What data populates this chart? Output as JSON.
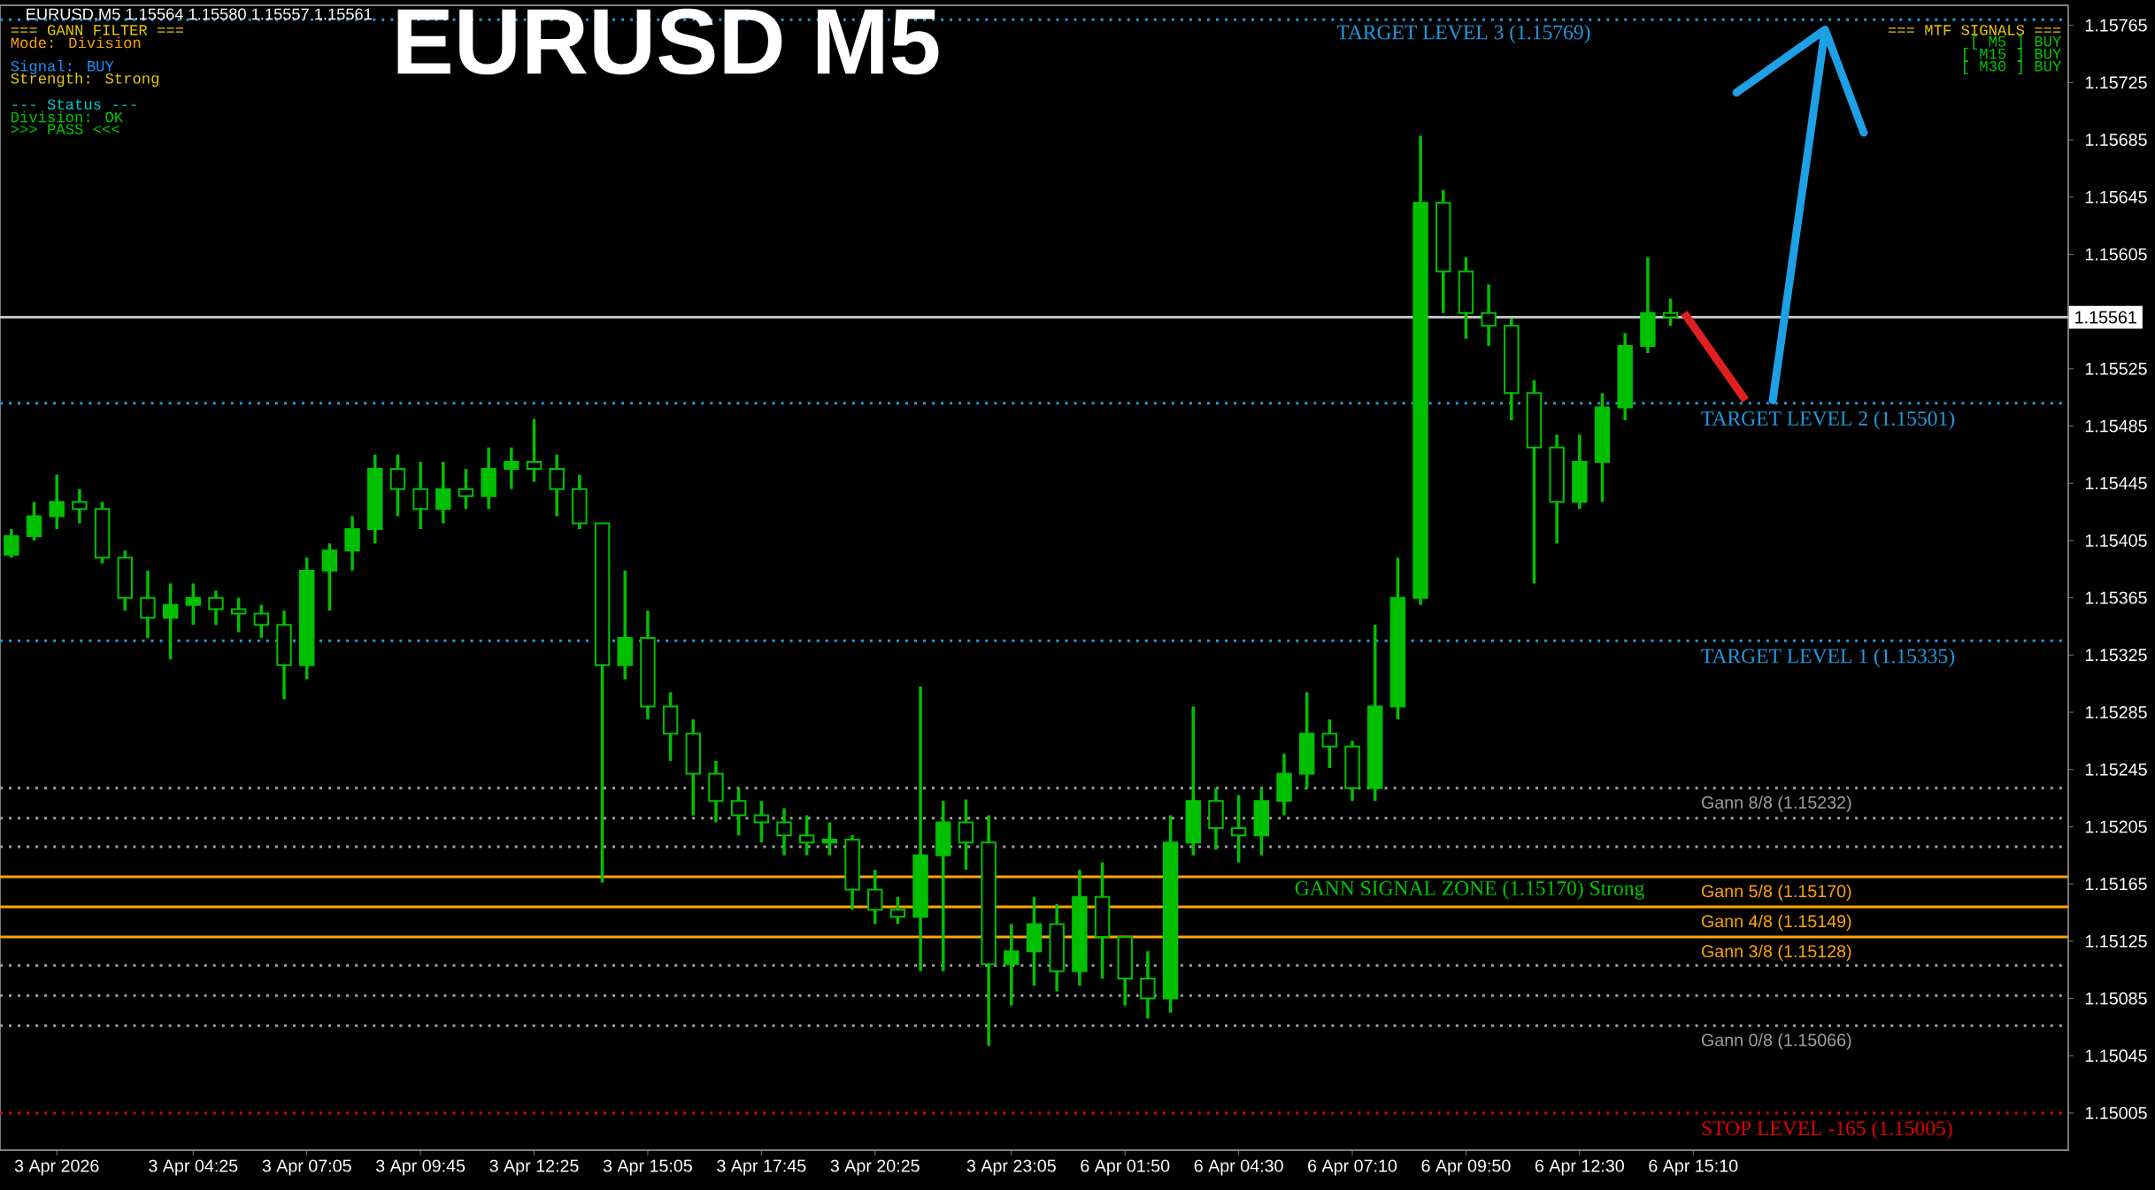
{
  "chart_data": {
    "type": "candlestick",
    "title": "EURUSD M5",
    "color": "#00c000",
    "categories": [
      null,
      null,
      "3 Apr 2026",
      null,
      null,
      null,
      null,
      null,
      "3 Apr 04:25",
      null,
      null,
      null,
      null,
      "3 Apr 07:05",
      null,
      null,
      null,
      null,
      "3 Apr 09:45",
      null,
      null,
      null,
      null,
      "3 Apr 12:25",
      null,
      null,
      null,
      null,
      "3 Apr 15:05",
      null,
      null,
      null,
      null,
      "3 Apr 17:45",
      null,
      null,
      null,
      null,
      "3 Apr 20:25",
      null,
      null,
      null,
      null,
      null,
      "3 Apr 23:05",
      null,
      null,
      null,
      null,
      "6 Apr 01:50",
      null,
      null,
      null,
      null,
      "6 Apr 04:30",
      null,
      null,
      null,
      null,
      "6 Apr 07:10",
      null,
      null,
      null,
      null,
      "6 Apr 09:50",
      null,
      null,
      null,
      null,
      "6 Apr 12:30",
      null,
      null,
      null,
      null,
      "6 Apr 15:10",
      null,
      null,
      null,
      null,
      null,
      null,
      null,
      null,
      null,
      null,
      null,
      null,
      null,
      null,
      null,
      null
    ],
    "ohlc": [
      [
        1.15395,
        1.15413,
        1.15393,
        1.15408
      ],
      [
        1.15408,
        1.15432,
        1.15405,
        1.15422
      ],
      [
        1.15422,
        1.15451,
        1.15413,
        1.15432
      ],
      [
        1.15432,
        1.15441,
        1.15417,
        1.15427
      ],
      [
        1.15427,
        1.15432,
        1.15389,
        1.15393
      ],
      [
        1.15393,
        1.15398,
        1.15356,
        1.15365
      ],
      [
        1.15365,
        1.15384,
        1.15337,
        1.15351
      ],
      [
        1.15351,
        1.15375,
        1.15322,
        1.1536
      ],
      [
        1.1536,
        1.15375,
        1.15346,
        1.15365
      ],
      [
        1.15365,
        1.1537,
        1.15346,
        1.15357
      ],
      [
        1.15357,
        1.15365,
        1.15341,
        1.15354
      ],
      [
        1.15354,
        1.1536,
        1.15337,
        1.15346
      ],
      [
        1.15346,
        1.15356,
        1.15294,
        1.15318
      ],
      [
        1.15318,
        1.15393,
        1.15308,
        1.15384
      ],
      [
        1.15384,
        1.15403,
        1.15356,
        1.15398
      ],
      [
        1.15398,
        1.15422,
        1.15384,
        1.15413
      ],
      [
        1.15413,
        1.15465,
        1.15403,
        1.15455
      ],
      [
        1.15455,
        1.15465,
        1.15422,
        1.15441
      ],
      [
        1.15441,
        1.1546,
        1.15413,
        1.15427
      ],
      [
        1.15427,
        1.1546,
        1.15417,
        1.15441
      ],
      [
        1.15441,
        1.15455,
        1.15427,
        1.15436
      ],
      [
        1.15436,
        1.1547,
        1.15427,
        1.15455
      ],
      [
        1.15455,
        1.1547,
        1.15441,
        1.1546
      ],
      [
        1.1546,
        1.1549,
        1.15446,
        1.15455
      ],
      [
        1.15455,
        1.15465,
        1.15422,
        1.15441
      ],
      [
        1.15441,
        1.15451,
        1.15413,
        1.15417
      ],
      [
        1.15417,
        1.15417,
        1.15166,
        1.15318
      ],
      [
        1.15318,
        1.15384,
        1.15308,
        1.15337
      ],
      [
        1.15337,
        1.15356,
        1.1528,
        1.15289
      ],
      [
        1.15289,
        1.15299,
        1.15251,
        1.1527
      ],
      [
        1.1527,
        1.1528,
        1.15213,
        1.15242
      ],
      [
        1.15242,
        1.15251,
        1.15208,
        1.15223
      ],
      [
        1.15223,
        1.15232,
        1.15199,
        1.15213
      ],
      [
        1.15213,
        1.15223,
        1.15194,
        1.15208
      ],
      [
        1.15208,
        1.15218,
        1.15185,
        1.15199
      ],
      [
        1.15199,
        1.15213,
        1.15185,
        1.15194
      ],
      [
        1.15194,
        1.15208,
        1.15185,
        1.15196
      ],
      [
        1.15196,
        1.15199,
        1.15147,
        1.15161
      ],
      [
        1.15161,
        1.15175,
        1.15137,
        1.15147
      ],
      [
        1.15147,
        1.15156,
        1.15137,
        1.15142
      ],
      [
        1.15142,
        1.15303,
        1.15104,
        1.15185
      ],
      [
        1.15185,
        1.15223,
        1.15104,
        1.15208
      ],
      [
        1.15208,
        1.15224,
        1.15175,
        1.15194
      ],
      [
        1.15194,
        1.15213,
        1.15052,
        1.15109
      ],
      [
        1.15109,
        1.15137,
        1.1508,
        1.15118
      ],
      [
        1.15118,
        1.15156,
        1.15094,
        1.15137
      ],
      [
        1.15137,
        1.15151,
        1.1509,
        1.15104
      ],
      [
        1.15104,
        1.15175,
        1.15094,
        1.15156
      ],
      [
        1.15156,
        1.1518,
        1.15099,
        1.15128
      ],
      [
        1.15128,
        1.15128,
        1.1508,
        1.15099
      ],
      [
        1.15099,
        1.15118,
        1.15071,
        1.15085
      ],
      [
        1.15085,
        1.15213,
        1.15075,
        1.15194
      ],
      [
        1.15194,
        1.15289,
        1.15185,
        1.15223
      ],
      [
        1.15223,
        1.15232,
        1.15189,
        1.15204
      ],
      [
        1.15204,
        1.15227,
        1.1518,
        1.15199
      ],
      [
        1.15199,
        1.15232,
        1.15185,
        1.15223
      ],
      [
        1.15223,
        1.15256,
        1.15213,
        1.15242
      ],
      [
        1.15242,
        1.15299,
        1.15232,
        1.1527
      ],
      [
        1.1527,
        1.1528,
        1.15246,
        1.15261
      ],
      [
        1.15261,
        1.15265,
        1.15223,
        1.15232
      ],
      [
        1.15232,
        1.15346,
        1.15223,
        1.15289
      ],
      [
        1.15289,
        1.15393,
        1.1528,
        1.15365
      ],
      [
        1.15365,
        1.15688,
        1.1536,
        1.15641
      ],
      [
        1.15641,
        1.1565,
        1.15564,
        1.15593
      ],
      [
        1.15593,
        1.15603,
        1.15546,
        1.15564
      ],
      [
        1.15564,
        1.15584,
        1.15541,
        1.15555
      ],
      [
        1.15555,
        1.1556,
        1.15489,
        1.15508
      ],
      [
        1.15508,
        1.15517,
        1.15375,
        1.1547
      ],
      [
        1.1547,
        1.15479,
        1.15403,
        1.15432
      ],
      [
        1.15432,
        1.15479,
        1.15427,
        1.1546
      ],
      [
        1.1546,
        1.15508,
        1.15432,
        1.15498
      ],
      [
        1.15498,
        1.1555,
        1.15489,
        1.15541
      ],
      [
        1.15541,
        1.15603,
        1.15536,
        1.15564
      ],
      [
        1.15564,
        1.15574,
        1.15555,
        1.15561
      ],
      null,
      null,
      null,
      null,
      null,
      null,
      null,
      null,
      null,
      null,
      null,
      null,
      null,
      null,
      null,
      null,
      null
    ],
    "ylim": [
      1.14979,
      1.15779
    ],
    "yticks": [
      1.15005,
      1.15045,
      1.15085,
      1.15125,
      1.15165,
      1.15205,
      1.15245,
      1.15285,
      1.15325,
      1.15365,
      1.15405,
      1.15445,
      1.15485,
      1.15525,
      1.15605,
      1.15645,
      1.15685,
      1.15725,
      1.15765
    ],
    "ref_lines": [
      {
        "axis": "y",
        "value": 1.15561,
        "label": "1.15561",
        "color": "#c0c0c0",
        "line_style": "solid"
      },
      {
        "axis": "y",
        "value": 1.15769,
        "label": "TARGET LEVEL 3 (1.15769)",
        "color": "#1e9be0",
        "line_style": "dotted"
      },
      {
        "axis": "y",
        "value": 1.15501,
        "label": "TARGET LEVEL 2 (1.15501)",
        "color": "#1e9be0",
        "line_style": "dotted"
      },
      {
        "axis": "y",
        "value": 1.15335,
        "label": "TARGET LEVEL 1 (1.15335)",
        "color": "#1e9be0",
        "line_style": "dotted"
      },
      {
        "axis": "y",
        "value": 1.15005,
        "label": "STOP LEVEL -165 (1.15005)",
        "color": "#e00000",
        "line_style": "dotted"
      },
      {
        "axis": "y",
        "value": 1.15232,
        "label": "Gann 8/8 (1.15232)",
        "color": "#a0a0a0",
        "line_style": "dotted"
      },
      {
        "axis": "y",
        "value": 1.15211,
        "color": "#a0a0a0",
        "line_style": "dotted"
      },
      {
        "axis": "y",
        "value": 1.15191,
        "color": "#a0a0a0",
        "line_style": "dotted"
      },
      {
        "axis": "y",
        "value": 1.1517,
        "label": "Gann 5/8 (1.15170)",
        "color": "#ffa500",
        "line_style": "solid"
      },
      {
        "axis": "y",
        "value": 1.15149,
        "label": "Gann 4/8 (1.15149)",
        "color": "#ffa500",
        "line_style": "solid"
      },
      {
        "axis": "y",
        "value": 1.15128,
        "label": "Gann 3/8 (1.15128)",
        "color": "#ffa500",
        "line_style": "solid"
      },
      {
        "axis": "y",
        "value": 1.15108,
        "color": "#a0a0a0",
        "line_style": "dotted"
      },
      {
        "axis": "y",
        "value": 1.15087,
        "color": "#a0a0a0",
        "line_style": "dotted"
      },
      {
        "axis": "y",
        "value": 1.15066,
        "label": "Gann 0/8 (1.15066)",
        "color": "#a0a0a0",
        "line_style": "dotted"
      }
    ],
    "annotations": [
      "EURUSD,M5  1.15564 1.15580 1.15557 1.15561",
      "=== GANN FILTER ===",
      "Mode: Division",
      "Signal: BUY",
      "Strength: Strong",
      "--- Status ---",
      "Division: OK",
      ">>> PASS <<<",
      "=== MTF SIGNALS ===",
      "[ M5 ]   BUY",
      "[ M15 ]   BUY",
      "[ M30 ]   BUY",
      "GANN SIGNAL ZONE (1.15170) Strong"
    ]
  }
}
